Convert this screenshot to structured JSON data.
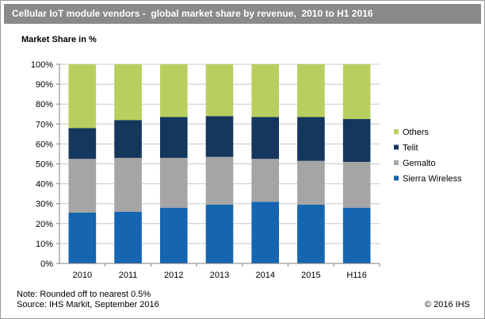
{
  "title": "Cellular IoT module vendors -  global market share by revenue,  2010 to H1 2016",
  "footnote_1": "Note: Rounded off to nearest 0.5%",
  "footnote_2": "Source: IHS Markit, September 2016",
  "copyright": "© 2016 IHS",
  "chart_data": {
    "type": "bar",
    "stacked": true,
    "ylabel": "Market Share in %",
    "xlabel": "",
    "ylim": [
      0,
      100
    ],
    "y_ticks": [
      "0%",
      "10%",
      "20%",
      "30%",
      "40%",
      "50%",
      "60%",
      "70%",
      "80%",
      "90%",
      "100%"
    ],
    "categories": [
      "2010",
      "2011",
      "2012",
      "2013",
      "2014",
      "2015",
      "H116"
    ],
    "series": [
      {
        "name": "Sierra Wireless",
        "color": "#1565b1",
        "values": [
          25.5,
          26.0,
          28.0,
          29.5,
          31.0,
          29.5,
          28.0
        ]
      },
      {
        "name": "Gemalto",
        "color": "#a5a5a5",
        "values": [
          27.0,
          27.0,
          25.0,
          24.0,
          21.5,
          22.0,
          23.0
        ]
      },
      {
        "name": "Telit",
        "color": "#14375e",
        "values": [
          15.5,
          19.0,
          20.5,
          20.5,
          21.0,
          22.0,
          21.5
        ]
      },
      {
        "name": "Others",
        "color": "#b8cf5f",
        "values": [
          32.0,
          28.0,
          26.5,
          26.0,
          26.5,
          26.5,
          27.5
        ]
      }
    ],
    "legend_order": [
      "Others",
      "Telit",
      "Gemalto",
      "Sierra Wireless"
    ],
    "legend_position": "right",
    "grid": true
  }
}
